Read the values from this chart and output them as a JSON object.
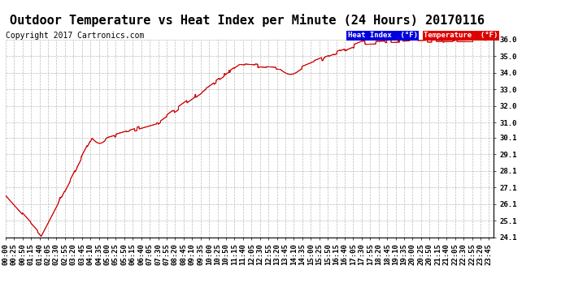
{
  "title": "Outdoor Temperature vs Heat Index per Minute (24 Hours) 20170116",
  "copyright": "Copyright 2017 Cartronics.com",
  "legend_heat_index": "Heat Index  (°F)",
  "legend_temperature": "Temperature  (°F)",
  "legend_heat_index_bg": "#0000dd",
  "legend_temperature_bg": "#dd0000",
  "legend_text_color": "#ffffff",
  "line_color": "#cc0000",
  "ylim": [
    24.1,
    36.0
  ],
  "yticks": [
    24.1,
    25.1,
    26.1,
    27.1,
    28.1,
    29.1,
    30.1,
    31.0,
    32.0,
    33.0,
    34.0,
    35.0,
    36.0
  ],
  "background_color": "#ffffff",
  "grid_color": "#bbbbbb",
  "title_fontsize": 11,
  "copyright_fontsize": 7,
  "tick_label_fontsize": 6.5
}
